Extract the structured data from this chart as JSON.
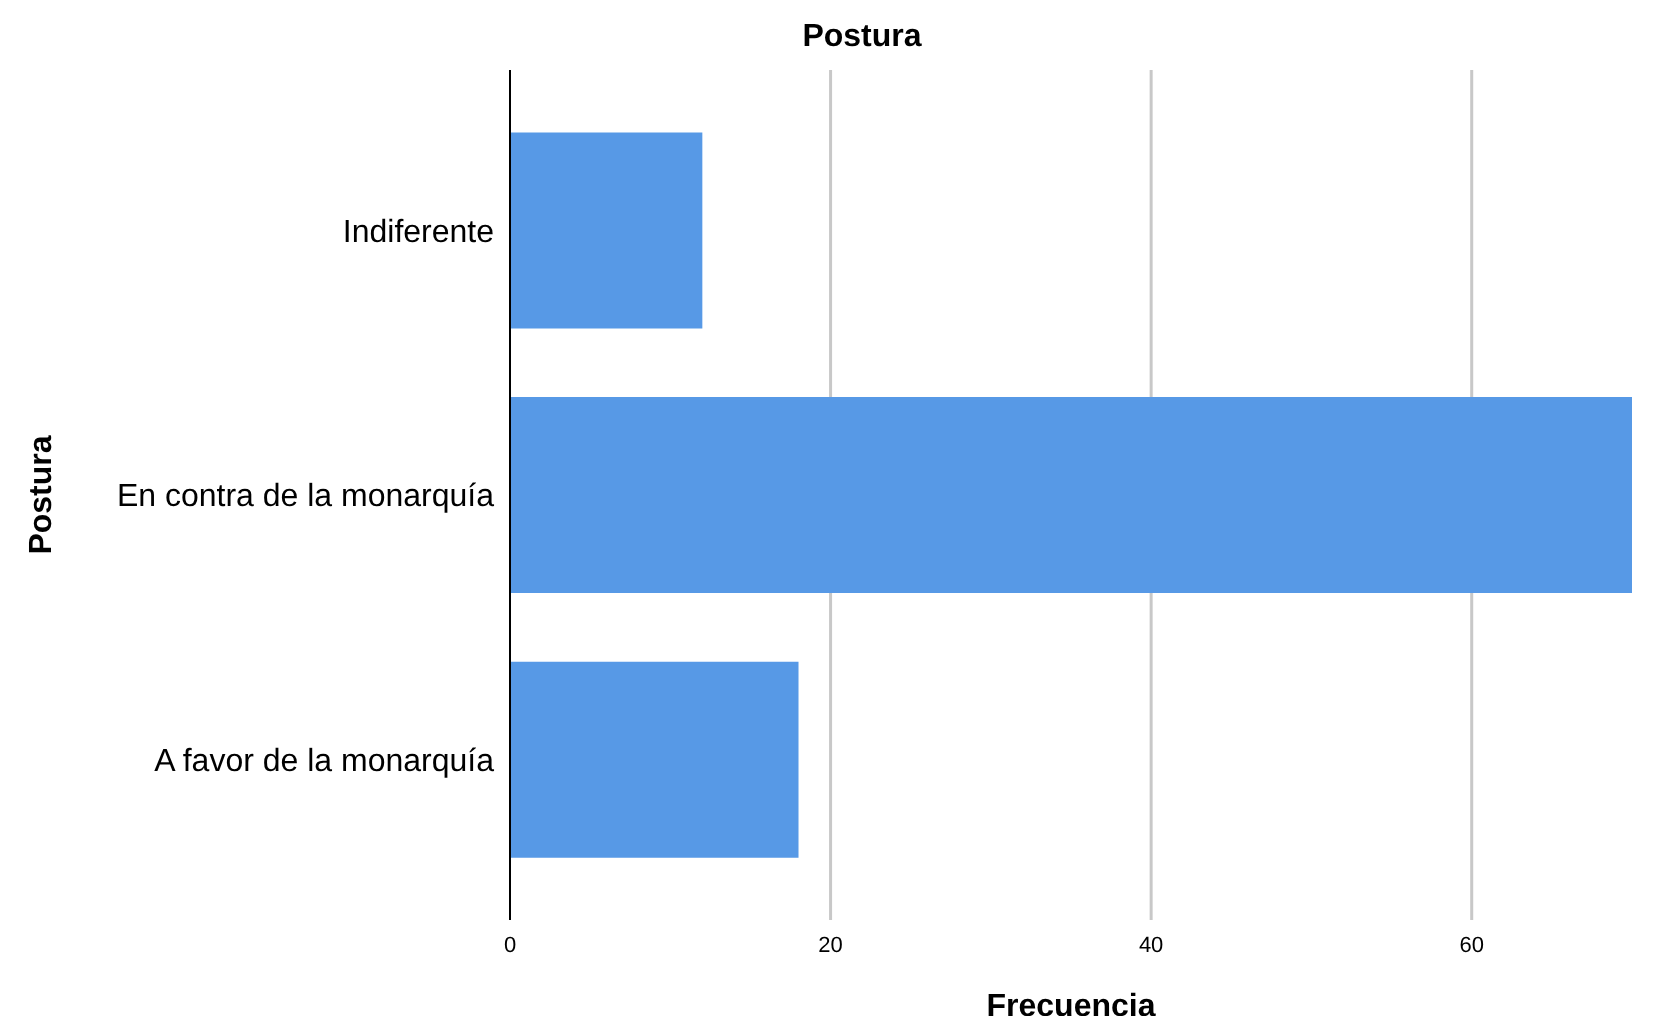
{
  "chart_data": {
    "type": "bar",
    "orientation": "horizontal",
    "title": "Postura",
    "xlabel": "Frecuencia",
    "ylabel": "Postura",
    "categories": [
      "Indiferente",
      "En contra de la monarquía",
      "A favor de la monarquía"
    ],
    "values": [
      12,
      70,
      18
    ],
    "color": "#5799e6",
    "xlim": [
      0,
      70
    ],
    "xticks": [
      0,
      20,
      40,
      60
    ],
    "grid": "x"
  }
}
